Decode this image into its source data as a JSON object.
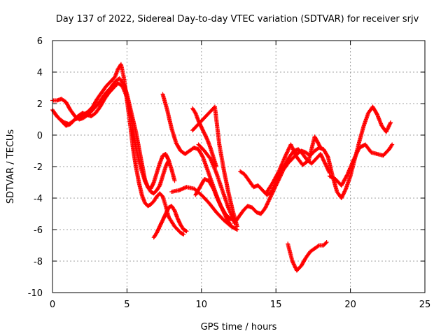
{
  "chart_data": {
    "type": "scatter",
    "title": "Day 137 of 2022, Sidereal Day-to-day VTEC variation (SDTVAR) for receiver srjv",
    "xlabel": "GPS time / hours",
    "ylabel": "SDTVAR / TECUs",
    "xlim": [
      0,
      25
    ],
    "ylim": [
      -10,
      6
    ],
    "xticks": [
      0,
      5,
      10,
      15,
      20,
      25
    ],
    "yticks": [
      -10,
      -8,
      -6,
      -4,
      -2,
      0,
      2,
      4,
      6
    ],
    "grid": true,
    "marker": "+",
    "color": "#ff0000",
    "series": [
      {
        "x": [
          0.0,
          0.3,
          0.6,
          0.9,
          1.2,
          1.5,
          1.8,
          2.1,
          2.4,
          2.7,
          3.0,
          3.3,
          3.6,
          3.9,
          4.2,
          4.4,
          4.6,
          4.8,
          5.0,
          5.2,
          5.4,
          5.6,
          5.8,
          6.0,
          6.2,
          6.4,
          6.6,
          6.8,
          7.0,
          7.2,
          7.4,
          7.6,
          7.8,
          8.0,
          8.2,
          8.4,
          8.6,
          8.8
        ],
        "y": [
          1.6,
          1.2,
          0.9,
          0.6,
          0.7,
          1.0,
          1.1,
          1.3,
          1.5,
          1.8,
          2.3,
          2.7,
          3.1,
          3.4,
          3.7,
          4.2,
          4.5,
          3.6,
          2.2,
          0.8,
          -0.8,
          -2.0,
          -3.0,
          -3.8,
          -4.3,
          -4.5,
          -4.4,
          -4.2,
          -3.9,
          -3.7,
          -3.9,
          -4.5,
          -5.2,
          -5.5,
          -5.8,
          -6.0,
          -6.2,
          -6.3
        ]
      },
      {
        "x": [
          0.0,
          0.3,
          0.6,
          0.9,
          1.2,
          1.5,
          1.8,
          2.1,
          2.4,
          2.7,
          3.0,
          3.3,
          3.6,
          3.9,
          4.2,
          4.5,
          4.8,
          5.0,
          5.2,
          5.4,
          5.6,
          5.8,
          6.0,
          6.2,
          6.4,
          6.6,
          6.8,
          7.0,
          7.2,
          7.4,
          7.6,
          7.8
        ],
        "y": [
          2.2,
          2.2,
          2.3,
          2.1,
          1.6,
          1.2,
          1.0,
          1.1,
          1.3,
          1.6,
          1.9,
          2.3,
          2.7,
          3.0,
          3.4,
          3.6,
          3.2,
          2.6,
          1.8,
          1.0,
          0.2,
          -0.8,
          -1.8,
          -2.8,
          -3.3,
          -3.4,
          -3.0,
          -2.4,
          -1.8,
          -1.3,
          -1.2,
          -1.6
        ]
      },
      {
        "x": [
          0.2,
          0.5,
          0.8,
          1.1,
          1.4,
          1.7,
          2.0,
          2.3,
          2.6,
          2.9,
          3.2,
          3.5,
          3.8,
          4.1,
          4.4,
          4.7,
          5.0,
          5.2,
          5.4,
          5.6,
          5.8,
          6.0,
          6.2,
          6.4,
          6.6,
          6.8,
          7.0,
          7.2,
          7.4,
          7.6,
          7.8,
          8.0,
          8.2
        ],
        "y": [
          1.3,
          1.0,
          0.8,
          0.7,
          0.9,
          1.2,
          1.4,
          1.3,
          1.2,
          1.4,
          1.8,
          2.3,
          2.7,
          3.0,
          3.3,
          3.1,
          2.4,
          1.5,
          0.4,
          -0.8,
          -1.6,
          -2.3,
          -2.9,
          -3.3,
          -3.6,
          -3.7,
          -3.5,
          -3.2,
          -2.6,
          -2.0,
          -1.6,
          -2.2,
          -2.9
        ]
      },
      {
        "x": [
          6.8,
          7.0,
          7.2,
          7.4,
          7.6,
          7.8,
          8.0,
          8.2,
          8.4,
          8.6,
          8.8,
          9.0
        ],
        "y": [
          -6.5,
          -6.2,
          -5.8,
          -5.4,
          -5.0,
          -4.6,
          -4.5,
          -4.8,
          -5.3,
          -5.7,
          -6.0,
          -6.1
        ]
      },
      {
        "x": [
          7.4,
          7.7,
          8.0,
          8.3,
          8.6,
          8.9,
          9.2,
          9.5,
          9.8,
          10.1,
          10.4,
          10.7,
          11.0,
          11.3,
          11.6,
          11.9,
          12.2
        ],
        "y": [
          2.6,
          1.6,
          0.4,
          -0.5,
          -1.0,
          -1.2,
          -1.0,
          -0.8,
          -0.9,
          -1.4,
          -2.2,
          -3.0,
          -3.8,
          -4.5,
          -5.0,
          -5.3,
          -5.4
        ]
      },
      {
        "x": [
          8.0,
          8.5,
          9.0,
          9.5,
          10.0,
          10.5,
          11.0,
          11.5,
          12.0,
          12.4
        ],
        "y": [
          -3.6,
          -3.5,
          -3.3,
          -3.4,
          -3.8,
          -4.3,
          -4.9,
          -5.4,
          -5.8,
          -6.0
        ]
      },
      {
        "x": [
          9.4,
          9.6,
          9.8,
          10.0,
          10.2,
          10.4,
          10.6,
          10.8,
          11.0
        ],
        "y": [
          1.7,
          1.4,
          0.9,
          0.5,
          0.1,
          -0.3,
          -0.8,
          -1.4,
          -2.0
        ]
      },
      {
        "x": [
          9.6,
          9.9,
          10.2,
          10.5,
          10.8,
          11.1,
          11.4,
          11.7,
          12.0
        ],
        "y": [
          -3.8,
          -3.3,
          -2.8,
          -2.9,
          -3.4,
          -4.1,
          -4.7,
          -5.3,
          -5.8
        ]
      },
      {
        "x": [
          9.4,
          9.7,
          10.0,
          10.3,
          10.6,
          10.9,
          11.2,
          11.5,
          11.8,
          12.1,
          12.4
        ],
        "y": [
          0.3,
          0.6,
          0.9,
          1.2,
          1.5,
          1.8,
          -0.6,
          -2.2,
          -3.6,
          -4.8,
          -5.8
        ]
      },
      {
        "x": [
          9.8,
          10.2,
          10.6,
          11.0,
          11.4,
          11.8,
          12.2
        ],
        "y": [
          -0.6,
          -1.0,
          -1.5,
          -2.4,
          -3.5,
          -4.6,
          -5.5
        ]
      },
      {
        "x": [
          12.2,
          12.5,
          12.8,
          13.1,
          13.4,
          13.7,
          14.0,
          14.3,
          14.6,
          14.9,
          15.2,
          15.5,
          15.8,
          16.1,
          16.4,
          16.7,
          17.0,
          17.3,
          17.6,
          17.9,
          18.2,
          18.5,
          18.8,
          19.1,
          19.4,
          19.7,
          20.0,
          20.3,
          20.6,
          20.9,
          21.2,
          21.5,
          21.8,
          22.1,
          22.4,
          22.7
        ],
        "y": [
          -5.6,
          -5.2,
          -4.8,
          -4.5,
          -4.6,
          -4.9,
          -5.0,
          -4.6,
          -4.0,
          -3.4,
          -2.8,
          -2.2,
          -1.8,
          -1.5,
          -1.2,
          -1.0,
          -1.1,
          -1.3,
          -1.0,
          -0.8,
          -0.9,
          -1.4,
          -2.6,
          -3.6,
          -4.0,
          -3.4,
          -2.6,
          -1.5,
          -0.4,
          0.6,
          1.4,
          1.8,
          1.3,
          0.6,
          0.2,
          0.8
        ]
      },
      {
        "x": [
          12.6,
          12.9,
          13.2,
          13.5,
          13.8,
          14.1,
          14.4,
          14.7,
          15.0,
          15.3,
          15.6,
          15.9,
          16.2,
          16.5,
          16.8,
          17.1,
          17.4,
          17.7,
          18.0,
          18.3,
          18.6
        ],
        "y": [
          -2.3,
          -2.5,
          -2.9,
          -3.3,
          -3.2,
          -3.5,
          -3.8,
          -3.6,
          -3.0,
          -2.4,
          -1.9,
          -1.4,
          -1.0,
          -0.9,
          -1.2,
          -1.6,
          -1.8,
          -1.5,
          -1.2,
          -1.8,
          -2.4
        ]
      },
      {
        "x": [
          15.8,
          16.1,
          16.4,
          16.7,
          17.0,
          17.3,
          17.6,
          17.9,
          18.2,
          18.4
        ],
        "y": [
          -6.9,
          -8.0,
          -8.6,
          -8.3,
          -7.8,
          -7.4,
          -7.2,
          -7.0,
          -7.0,
          -6.8
        ]
      },
      {
        "x": [
          18.6,
          19.0,
          19.4,
          19.8,
          20.2,
          20.6,
          21.0,
          21.4,
          21.8,
          22.2,
          22.6,
          22.8
        ],
        "y": [
          -2.6,
          -2.8,
          -3.2,
          -2.5,
          -1.6,
          -0.8,
          -0.6,
          -1.1,
          -1.2,
          -1.3,
          -0.9,
          -0.6
        ]
      },
      {
        "x": [
          14.4,
          14.8,
          15.2,
          15.6,
          16.0,
          16.4,
          16.8,
          17.2,
          17.6,
          18.0
        ],
        "y": [
          -3.6,
          -3.0,
          -2.3,
          -1.4,
          -0.6,
          -1.4,
          -1.9,
          -1.6,
          -0.1,
          -0.8
        ]
      }
    ]
  }
}
